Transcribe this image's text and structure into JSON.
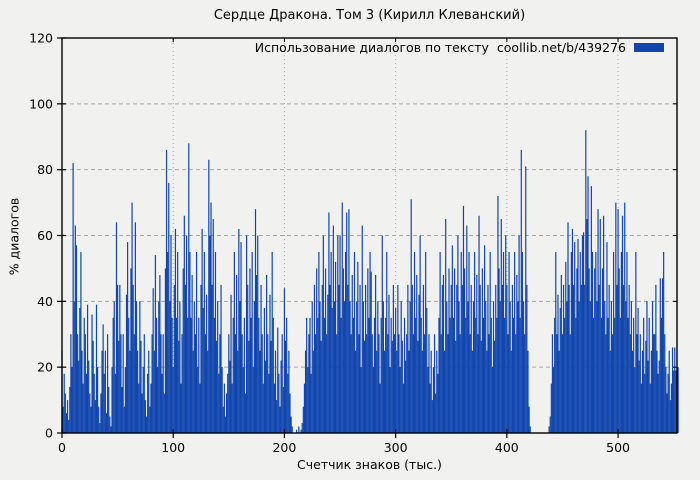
{
  "page": {
    "background": "#f1f1ef"
  },
  "header": {
    "title": "Сердце Дракона. Том 3 (Кирилл Клеванский)"
  },
  "legend": {
    "label": "Использование диалогов по тексту",
    "source": "coollib.net/b/439276",
    "swatch_color": "#1146ae"
  },
  "axes": {
    "xlabel": "Счетчик знаков (тыс.)",
    "ylabel": "% диалогов"
  },
  "colors": {
    "bar": "#1146ae",
    "grid": "#a8a8a8",
    "frame": "#000000",
    "background": "#f1f1ef"
  },
  "chart_data": {
    "type": "bar",
    "title": "Сердце Дракона. Том 3 (Кирилл Клеванский)",
    "legend_entries": [
      "Использование диалогов по тексту  coollib.net/b/439276"
    ],
    "xlabel": "Счетчик знаков (тыс.)",
    "ylabel": "% диалогов",
    "xlim": [
      0,
      553
    ],
    "ylim": [
      0,
      120
    ],
    "x_ticks": [
      0,
      100,
      200,
      300,
      400,
      500
    ],
    "y_ticks": [
      0,
      20,
      40,
      60,
      80,
      100,
      120
    ],
    "grid": true,
    "legend_position": "top-right-inside",
    "bar_color": "#1146ae",
    "x_start": 0,
    "x_step": 1,
    "values": [
      25,
      8,
      18,
      12,
      6,
      10,
      4,
      14,
      30,
      20,
      82,
      40,
      63,
      57,
      30,
      22,
      38,
      55,
      25,
      15,
      35,
      30,
      18,
      39,
      22,
      12,
      8,
      36,
      28,
      18,
      10,
      39,
      20,
      8,
      3,
      12,
      25,
      33,
      18,
      25,
      6,
      30,
      14,
      5,
      2,
      20,
      35,
      40,
      18,
      64,
      45,
      28,
      45,
      30,
      14,
      30,
      8,
      20,
      42,
      58,
      35,
      25,
      50,
      70,
      45,
      30,
      64,
      40,
      25,
      15,
      40,
      28,
      12,
      20,
      30,
      10,
      5,
      18,
      25,
      8,
      15,
      30,
      44,
      25,
      54,
      35,
      20,
      40,
      48,
      30,
      18,
      30,
      12,
      50,
      86,
      55,
      76,
      40,
      60,
      35,
      20,
      45,
      62,
      35,
      55,
      28,
      40,
      15,
      30,
      50,
      66,
      45,
      60,
      35,
      88,
      55,
      35,
      48,
      25,
      40,
      30,
      55,
      20,
      35,
      15,
      45,
      62,
      38,
      55,
      30,
      42,
      25,
      83,
      60,
      70,
      45,
      65,
      35,
      55,
      28,
      40,
      18,
      30,
      45,
      20,
      8,
      15,
      5,
      12,
      18,
      30,
      22,
      42,
      15,
      35,
      55,
      30,
      48,
      25,
      62,
      40,
      58,
      30,
      20,
      35,
      12,
      60,
      45,
      28,
      50,
      35,
      55,
      20,
      40,
      68,
      48,
      60,
      35,
      25,
      45,
      30,
      15,
      38,
      22,
      48,
      30,
      18,
      42,
      28,
      55,
      35,
      15,
      25,
      10,
      32,
      18,
      8,
      22,
      30,
      14,
      44,
      28,
      35,
      18,
      25,
      12,
      5,
      2,
      0,
      0,
      0,
      1,
      0,
      2,
      0,
      1,
      3,
      8,
      15,
      25,
      35,
      20,
      30,
      35,
      18,
      40,
      25,
      45,
      30,
      50,
      35,
      55,
      40,
      28,
      45,
      60,
      35,
      50,
      30,
      42,
      67,
      45,
      55,
      38,
      63,
      40,
      52,
      30,
      60,
      45,
      60,
      35,
      70,
      50,
      40,
      55,
      67,
      45,
      68,
      40,
      30,
      48,
      35,
      55,
      25,
      40,
      52,
      30,
      45,
      20,
      63,
      40,
      28,
      45,
      30,
      50,
      35,
      55,
      49,
      30,
      20,
      35,
      48,
      25,
      40,
      30,
      15,
      35,
      60,
      40,
      25,
      35,
      55,
      30,
      42,
      20,
      35,
      28,
      45,
      30,
      38,
      25,
      45,
      30,
      20,
      40,
      28,
      15,
      35,
      22,
      30,
      45,
      25,
      40,
      71,
      45,
      30,
      55,
      35,
      48,
      28,
      42,
      60,
      35,
      25,
      45,
      30,
      55,
      38,
      20,
      30,
      15,
      25,
      10,
      20,
      30,
      12,
      25,
      18,
      35,
      55,
      30,
      45,
      48,
      25,
      65,
      40,
      30,
      50,
      35,
      45,
      57,
      35,
      50,
      28,
      45,
      60,
      40,
      30,
      55,
      45,
      69,
      50,
      35,
      63,
      40,
      55,
      30,
      45,
      25,
      40,
      55,
      35,
      48,
      30,
      66,
      45,
      28,
      50,
      35,
      57,
      40,
      25,
      45,
      30,
      55,
      35,
      20,
      40,
      28,
      45,
      35,
      72,
      50,
      40,
      65,
      45,
      55,
      35,
      60,
      45,
      30,
      55,
      40,
      25,
      45,
      35,
      55,
      30,
      48,
      40,
      60,
      35,
      86,
      55,
      40,
      30,
      81,
      45,
      25,
      8,
      2,
      0,
      0,
      0,
      0,
      0,
      0,
      0,
      0,
      0,
      0,
      0,
      0,
      0,
      0,
      0,
      0,
      2,
      5,
      15,
      30,
      20,
      35,
      55,
      30,
      42,
      25,
      38,
      48,
      30,
      45,
      35,
      52,
      40,
      64,
      45,
      30,
      55,
      62,
      45,
      58,
      35,
      50,
      59,
      40,
      55,
      45,
      60,
      61,
      45,
      92,
      65,
      78,
      50,
      40,
      75,
      55,
      35,
      50,
      55,
      40,
      68,
      45,
      65,
      35,
      50,
      66,
      40,
      30,
      58,
      35,
      45,
      25,
      40,
      30,
      55,
      35,
      70,
      45,
      68,
      50,
      35,
      55,
      66,
      45,
      70,
      40,
      55,
      35,
      45,
      30,
      40,
      25,
      35,
      20,
      55,
      30,
      38,
      22,
      30,
      15,
      25,
      35,
      18,
      28,
      40,
      22,
      35,
      15,
      25,
      40,
      30,
      30,
      45,
      25,
      18,
      22,
      47,
      35,
      47,
      55,
      30,
      20,
      12,
      18,
      25,
      10,
      15,
      26,
      19,
      26,
      19,
      8,
      20
    ]
  }
}
